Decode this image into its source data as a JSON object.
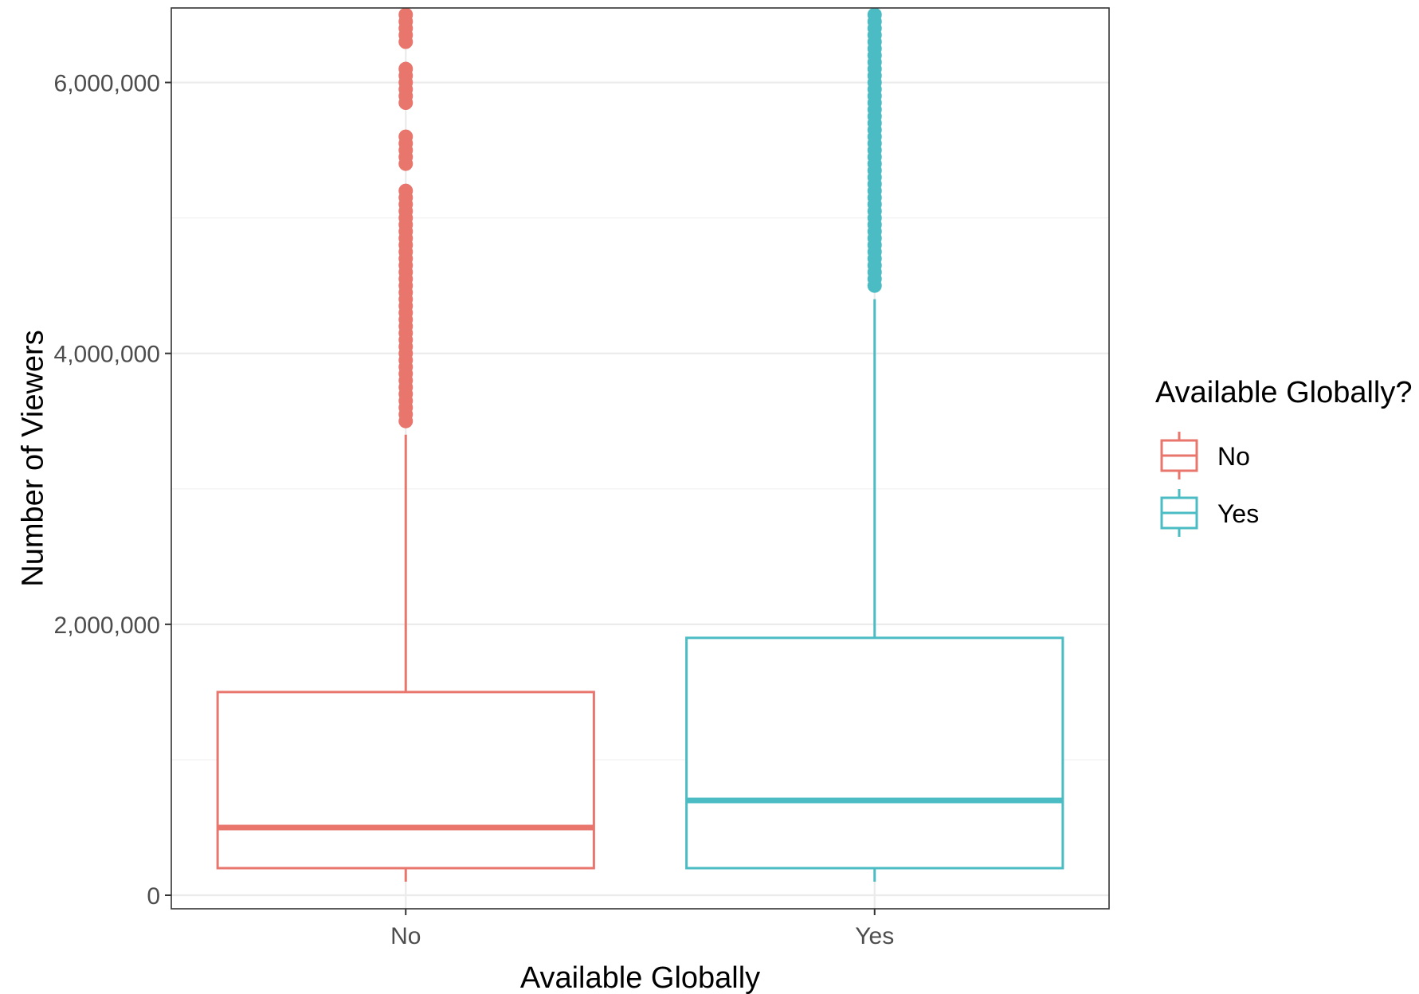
{
  "chart_data": {
    "type": "box",
    "title": "",
    "xlabel": "Available Globally",
    "ylabel": "Number of Viewers",
    "categories": [
      "No",
      "Yes"
    ],
    "ylim": [
      -100000,
      6550000
    ],
    "yticks": [
      0,
      2000000,
      4000000,
      6000000
    ],
    "ytick_labels": [
      "0",
      "2,000,000",
      "4,000,000",
      "6,000,000"
    ],
    "grid": true,
    "legend": {
      "title": "Available Globally?",
      "position": "right",
      "entries": [
        "No",
        "Yes"
      ]
    },
    "series": [
      {
        "name": "No",
        "color": "#E8766D",
        "whisker_low": 100000,
        "q1": 200000,
        "median": 500000,
        "q3": 1500000,
        "whisker_high": 3400000,
        "outliers": [
          3500000,
          3550000,
          3600000,
          3650000,
          3700000,
          3750000,
          3800000,
          3850000,
          3900000,
          3950000,
          4000000,
          4050000,
          4100000,
          4150000,
          4200000,
          4250000,
          4300000,
          4350000,
          4400000,
          4450000,
          4500000,
          4550000,
          4600000,
          4650000,
          4700000,
          4750000,
          4800000,
          4850000,
          4900000,
          4950000,
          5000000,
          5050000,
          5100000,
          5150000,
          5200000,
          5400000,
          5450000,
          5500000,
          5550000,
          5600000,
          5850000,
          5900000,
          5950000,
          6000000,
          6050000,
          6100000,
          6300000,
          6350000,
          6400000,
          6450000,
          6500000
        ]
      },
      {
        "name": "Yes",
        "color": "#4BBCC3",
        "whisker_low": 100000,
        "q1": 200000,
        "median": 700000,
        "q3": 1900000,
        "whisker_high": 4400000,
        "outliers": [
          4500000,
          4550000,
          4600000,
          4650000,
          4700000,
          4750000,
          4800000,
          4850000,
          4900000,
          4950000,
          5000000,
          5050000,
          5100000,
          5150000,
          5200000,
          5250000,
          5300000,
          5350000,
          5400000,
          5450000,
          5500000,
          5550000,
          5600000,
          5650000,
          5700000,
          5750000,
          5800000,
          5850000,
          5900000,
          5950000,
          6000000,
          6050000,
          6100000,
          6150000,
          6200000,
          6250000,
          6300000,
          6350000,
          6400000,
          6450000,
          6500000
        ]
      }
    ]
  }
}
